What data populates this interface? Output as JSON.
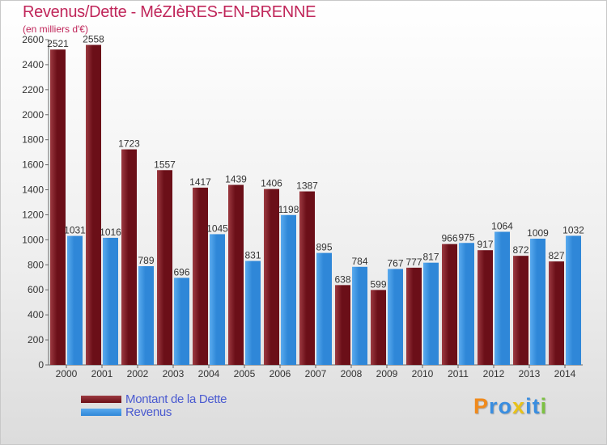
{
  "title": "Revenus/Dette - MéZIèRES-EN-BRENNE",
  "subtitle": "(en milliers d'€)",
  "colors": {
    "dette": "#6b0f18",
    "dette_hi": "#9c3a41",
    "revenus": "#2f87d8",
    "revenus_hi": "#5aaaee",
    "title": "#c0265a",
    "legend_text": "#4a5ad0"
  },
  "legend": {
    "dette_label": "Montant de la Dette",
    "revenus_label": "Revenus"
  },
  "brand": {
    "letters": [
      "P",
      "r",
      "o",
      "x",
      "i",
      "t",
      "i"
    ],
    "colors": [
      "#f08a1c",
      "#3a8ee0",
      "#3a8ee0",
      "#e8c21a",
      "#3a8ee0",
      "#3a8ee0",
      "#7cc142"
    ]
  },
  "chart_data": {
    "type": "bar",
    "categories": [
      "2000",
      "2001",
      "2002",
      "2003",
      "2004",
      "2005",
      "2006",
      "2007",
      "2008",
      "2009",
      "2010",
      "2011",
      "2012",
      "2013",
      "2014"
    ],
    "series": [
      {
        "name": "Montant de la Dette",
        "values": [
          2521,
          2558,
          1723,
          1557,
          1417,
          1439,
          1406,
          1387,
          638,
          599,
          777,
          966,
          917,
          872,
          827
        ]
      },
      {
        "name": "Revenus",
        "values": [
          1031,
          1016,
          789,
          696,
          1045,
          831,
          1198,
          895,
          784,
          767,
          817,
          975,
          1064,
          1009,
          1032
        ]
      }
    ],
    "yticks": [
      0,
      200,
      400,
      600,
      800,
      1000,
      1200,
      1400,
      1600,
      1800,
      2000,
      2200,
      2400,
      2600
    ],
    "ylim": [
      0,
      2600
    ],
    "grid": false,
    "legend_position": "bottom-left"
  }
}
